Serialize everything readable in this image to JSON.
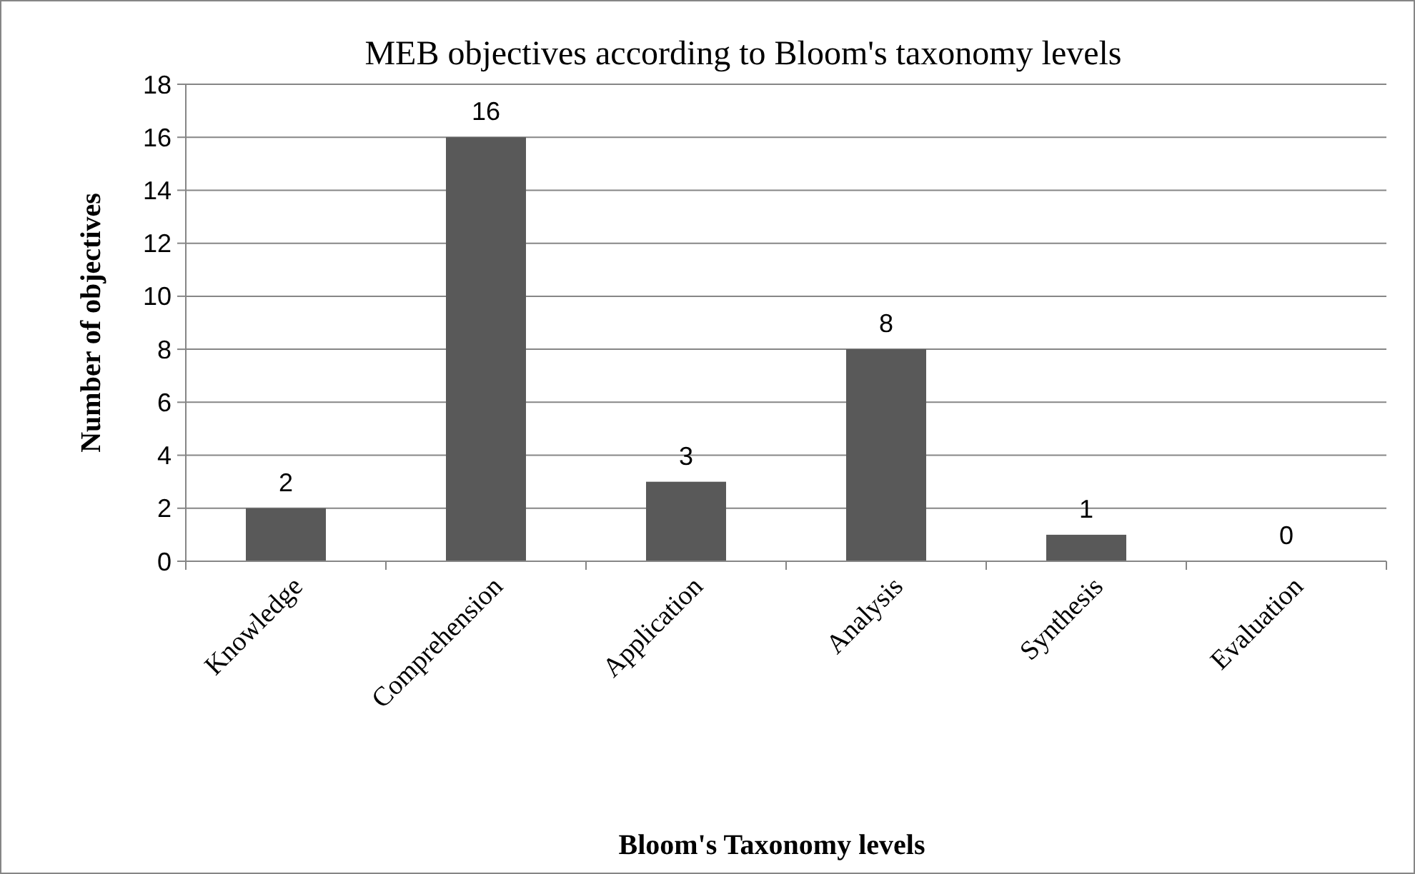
{
  "chart_data": {
    "type": "bar",
    "title": "MEB objectives according to Bloom's taxonomy levels",
    "xlabel": "Bloom's Taxonomy levels",
    "ylabel": "Number of objectives",
    "categories": [
      "Knowledge",
      "Comprehension",
      "Application",
      "Analysis",
      "Synthesis",
      "Evaluation"
    ],
    "values": [
      2,
      16,
      3,
      8,
      1,
      0
    ],
    "color": "#595959",
    "ylim": [
      0,
      18
    ],
    "yticks": [
      0,
      2,
      4,
      6,
      8,
      10,
      12,
      14,
      16,
      18
    ],
    "grid": "y",
    "data_labels": true
  }
}
